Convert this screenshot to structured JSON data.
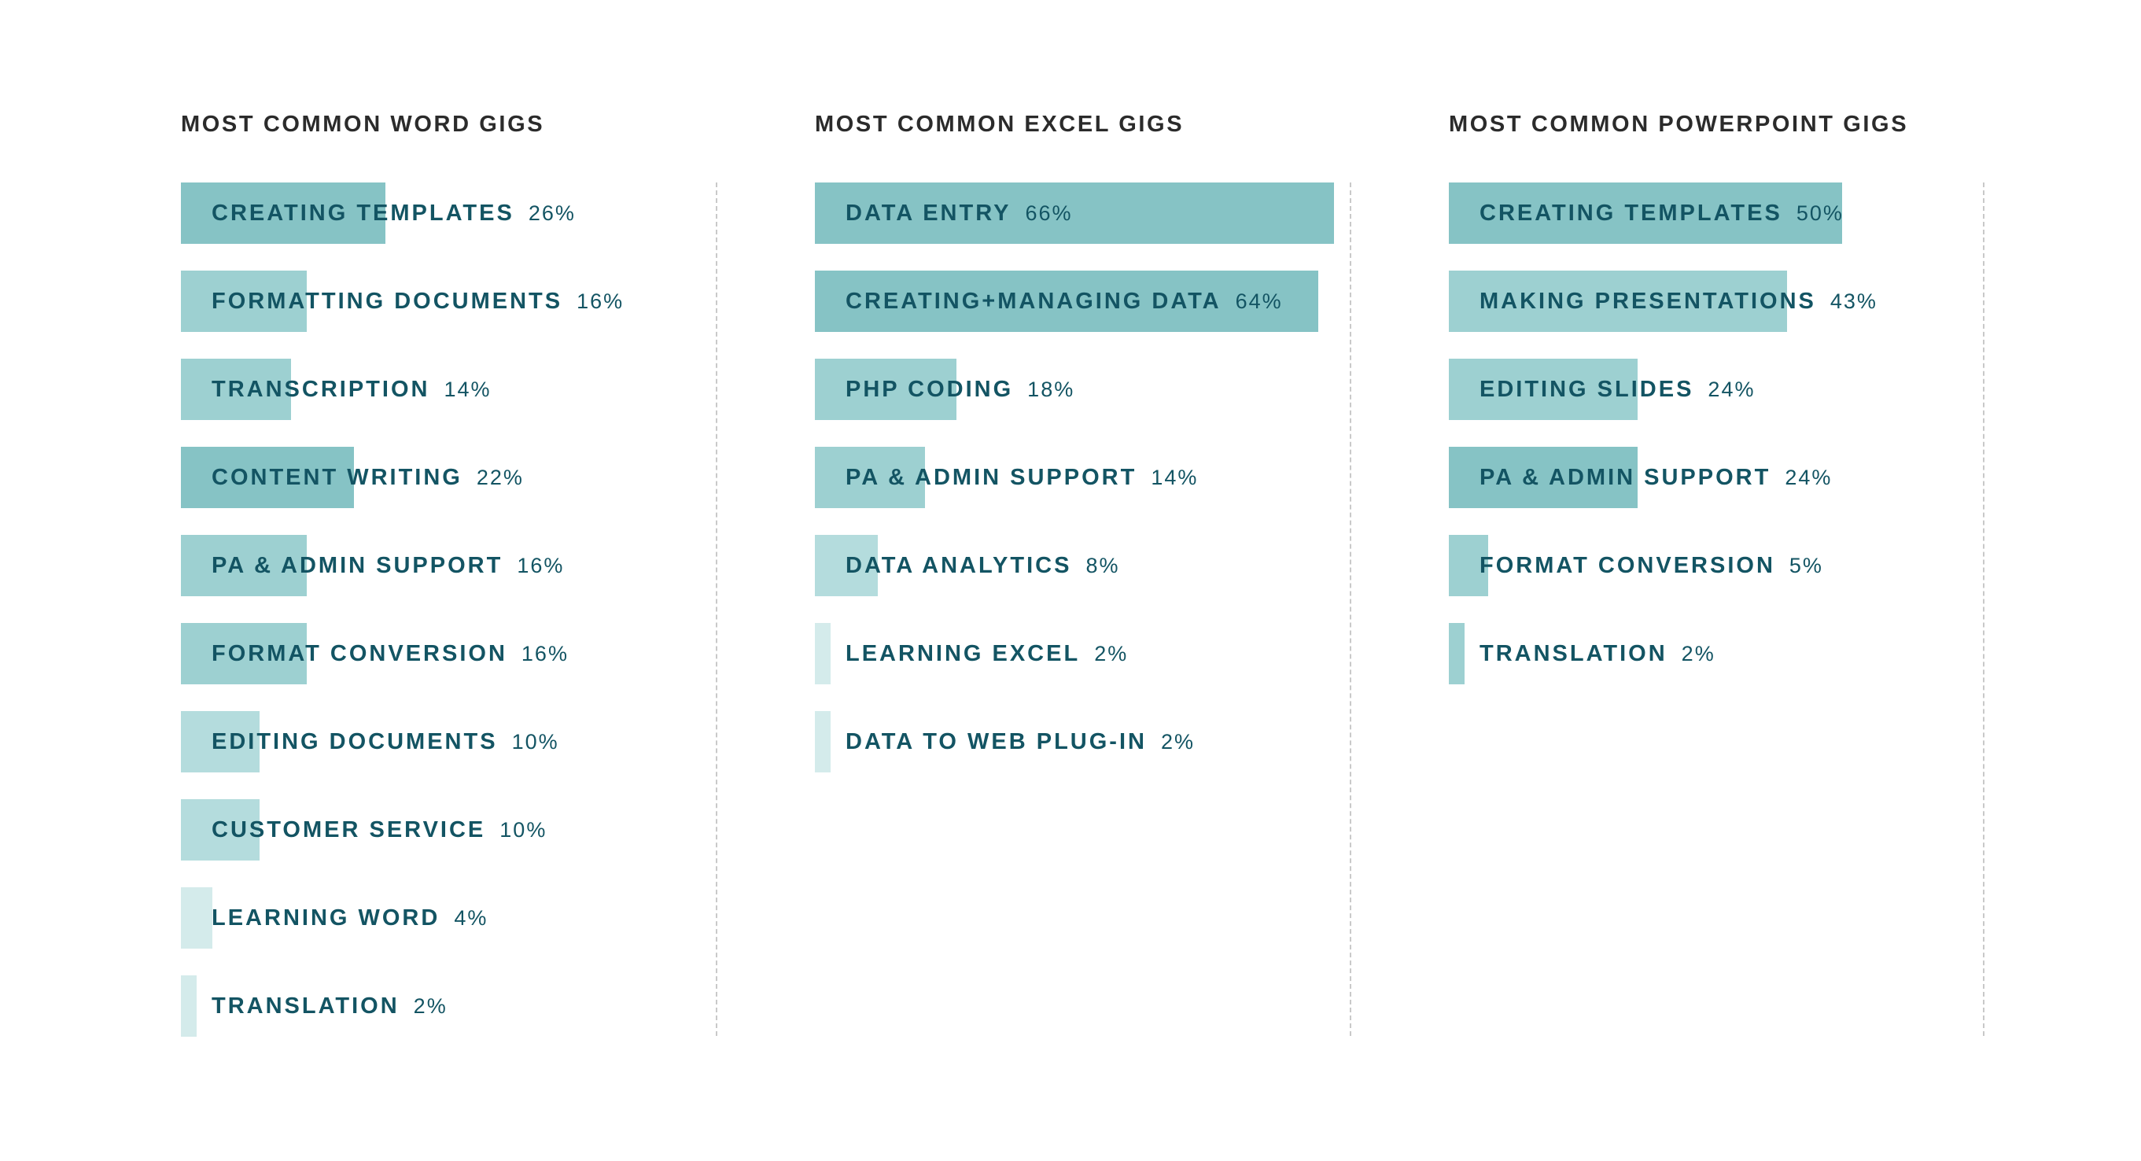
{
  "chart_data": [
    {
      "type": "bar",
      "orientation": "horizontal",
      "title": "MOST COMMON WORD GIGS",
      "categories": [
        "CREATING TEMPLATES",
        "FORMATTING DOCUMENTS",
        "TRANSCRIPTION",
        "CONTENT WRITING",
        "PA & ADMIN SUPPORT",
        "FORMAT CONVERSION",
        "EDITING DOCUMENTS",
        "CUSTOMER SERVICE",
        "LEARNING WORD",
        "TRANSLATION"
      ],
      "values": [
        26,
        16,
        14,
        22,
        16,
        16,
        10,
        10,
        4,
        2
      ],
      "value_labels": [
        "26%",
        "16%",
        "14%",
        "22%",
        "16%",
        "16%",
        "10%",
        "10%",
        "4%",
        "2%"
      ],
      "units": "%",
      "colors": [
        "#86c3c5",
        "#9dd0d1",
        "#9dd0d1",
        "#86c3c5",
        "#9dd0d1",
        "#9dd0d1",
        "#b4dcdd",
        "#b4dcdd",
        "#d4ebeb",
        "#d4ebeb"
      ]
    },
    {
      "type": "bar",
      "orientation": "horizontal",
      "title": "MOST COMMON EXCEL GIGS",
      "categories": [
        "DATA ENTRY",
        "CREATING+MANAGING DATA",
        "PHP CODING",
        "PA & ADMIN SUPPORT",
        "DATA ANALYTICS",
        "LEARNING EXCEL",
        "DATA TO WEB PLUG-IN"
      ],
      "values": [
        66,
        64,
        18,
        14,
        8,
        2,
        2
      ],
      "value_labels": [
        "66%",
        "64%",
        "18%",
        "14%",
        "8%",
        "2%",
        "2%"
      ],
      "units": "%",
      "colors": [
        "#86c3c5",
        "#86c3c5",
        "#9dd0d1",
        "#9dd0d1",
        "#b4dcdd",
        "#d4ebeb",
        "#d4ebeb"
      ]
    },
    {
      "type": "bar",
      "orientation": "horizontal",
      "title": "MOST COMMON POWERPOINT GIGS",
      "categories": [
        "CREATING TEMPLATES",
        "MAKING PRESENTATIONS",
        "EDITING SLIDES",
        "PA & ADMIN SUPPORT",
        "FORMAT CONVERSION",
        "TRANSLATION"
      ],
      "values": [
        50,
        43,
        24,
        24,
        5,
        2
      ],
      "value_labels": [
        "50%",
        "43%",
        "24%",
        "24%",
        "5%",
        "2%"
      ],
      "units": "%",
      "colors": [
        "#86c3c5",
        "#9dd0d1",
        "#9dd0d1",
        "#86c3c5",
        "#9dd0d1",
        "#9dd0d1"
      ]
    }
  ]
}
